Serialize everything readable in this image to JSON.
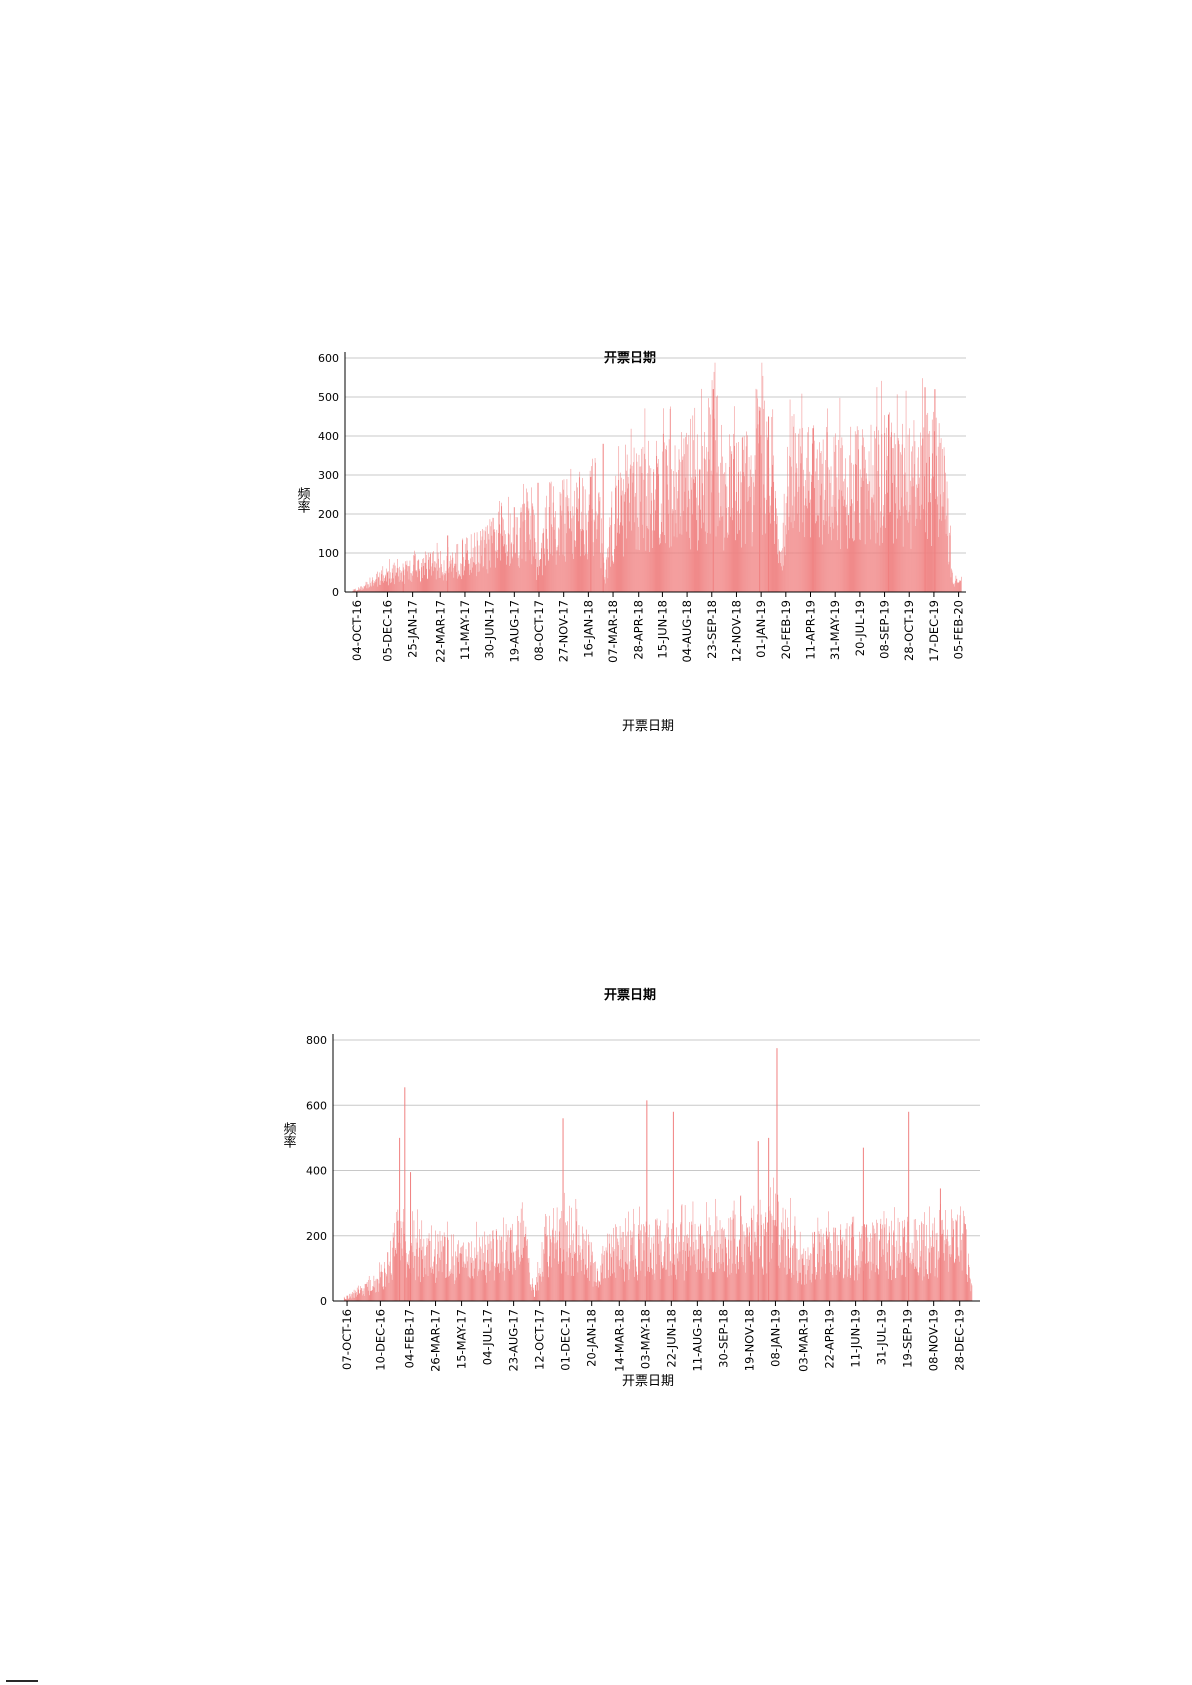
{
  "chart_data": [
    {
      "type": "bar",
      "title": "开票日期",
      "xlabel": "开票日期",
      "ylabel": "频率",
      "ylim": [
        0,
        600
      ],
      "yticks": [
        0,
        100,
        200,
        300,
        400,
        500,
        600
      ],
      "bar_color": "#f08080",
      "grid": true,
      "x_range": [
        "2016-09-10",
        "2020-02-20"
      ],
      "xticks": [
        "04-OCT-16",
        "05-DEC-16",
        "25-JAN-17",
        "22-MAR-17",
        "11-MAY-17",
        "30-JUN-17",
        "19-AUG-17",
        "08-OCT-17",
        "27-NOV-17",
        "16-JAN-18",
        "07-MAR-18",
        "28-APR-18",
        "15-JUN-18",
        "04-AUG-18",
        "23-SEP-18",
        "12-NOV-18",
        "01-JAN-19",
        "20-FEB-19",
        "11-APR-19",
        "31-MAY-19",
        "20-JUL-19",
        "08-SEP-19",
        "28-OCT-19",
        "17-DEC-19",
        "05-FEB-20"
      ],
      "x": [
        "2016-09-25",
        "2016-10-15",
        "2016-11-05",
        "2016-11-25",
        "2016-12-15",
        "2017-01-05",
        "2017-01-25",
        "2017-02-15",
        "2017-03-05",
        "2017-03-25",
        "2017-04-15",
        "2017-05-05",
        "2017-05-25",
        "2017-06-15",
        "2017-07-05",
        "2017-07-25",
        "2017-08-15",
        "2017-09-05",
        "2017-09-25",
        "2017-10-05",
        "2017-10-25",
        "2017-11-15",
        "2017-12-05",
        "2017-12-25",
        "2018-01-15",
        "2018-02-05",
        "2018-02-18",
        "2018-03-05",
        "2018-03-25",
        "2018-04-15",
        "2018-05-05",
        "2018-05-25",
        "2018-06-15",
        "2018-07-05",
        "2018-07-25",
        "2018-08-15",
        "2018-09-05",
        "2018-09-25",
        "2018-10-15",
        "2018-11-05",
        "2018-11-25",
        "2018-12-15",
        "2019-01-05",
        "2019-01-25",
        "2019-02-08",
        "2019-02-25",
        "2019-03-15",
        "2019-04-05",
        "2019-04-25",
        "2019-05-15",
        "2019-06-05",
        "2019-06-25",
        "2019-07-15",
        "2019-08-05",
        "2019-08-25",
        "2019-09-15",
        "2019-10-05",
        "2019-10-25",
        "2019-11-15",
        "2019-12-05",
        "2019-12-25",
        "2020-01-10",
        "2020-01-25",
        "2020-02-10"
      ],
      "values": [
        5,
        12,
        28,
        40,
        55,
        48,
        70,
        62,
        80,
        75,
        85,
        95,
        110,
        120,
        140,
        160,
        175,
        170,
        185,
        60,
        190,
        200,
        215,
        225,
        240,
        250,
        25,
        200,
        245,
        260,
        275,
        285,
        290,
        285,
        300,
        295,
        310,
        420,
        300,
        305,
        295,
        330,
        400,
        310,
        60,
        320,
        300,
        310,
        315,
        305,
        300,
        295,
        310,
        290,
        320,
        330,
        295,
        310,
        320,
        330,
        350,
        240,
        25,
        30
      ],
      "peaks": [
        {
          "x": "2017-01-05",
          "y": 55
        },
        {
          "x": "2017-04-05",
          "y": 145
        },
        {
          "x": "2017-10-05",
          "y": 280
        },
        {
          "x": "2018-01-20",
          "y": 295
        },
        {
          "x": "2018-02-14",
          "y": 380
        },
        {
          "x": "2018-09-25",
          "y": 520
        },
        {
          "x": "2018-12-28",
          "y": 465
        },
        {
          "x": "2019-01-15",
          "y": 450
        },
        {
          "x": "2019-04-15",
          "y": 420
        },
        {
          "x": "2019-09-15",
          "y": 455
        },
        {
          "x": "2019-11-28",
          "y": 525
        },
        {
          "x": "2019-12-18",
          "y": 520
        }
      ]
    },
    {
      "type": "bar",
      "title": "开票日期",
      "xlabel": "开票日期",
      "ylabel": "频率",
      "ylim": [
        0,
        800
      ],
      "yticks": [
        0,
        200,
        400,
        600,
        800
      ],
      "bar_color": "#f08080",
      "grid": true,
      "x_range": [
        "2016-09-10",
        "2020-02-05"
      ],
      "xticks": [
        "07-OCT-16",
        "10-DEC-16",
        "04-FEB-17",
        "26-MAR-17",
        "15-MAY-17",
        "04-JUL-17",
        "23-AUG-17",
        "12-OCT-17",
        "01-DEC-17",
        "20-JAN-18",
        "14-MAR-18",
        "03-MAY-18",
        "22-JUN-18",
        "11-AUG-18",
        "30-SEP-18",
        "19-NOV-18",
        "08-JAN-19",
        "03-MAR-19",
        "22-APR-19",
        "11-JUN-19",
        "31-JUL-19",
        "19-SEP-19",
        "08-NOV-19",
        "28-DEC-19"
      ],
      "x": [
        "2016-10-01",
        "2016-10-20",
        "2016-11-10",
        "2016-12-01",
        "2016-12-20",
        "2017-01-10",
        "2017-01-25",
        "2017-02-15",
        "2017-03-10",
        "2017-04-01",
        "2017-04-25",
        "2017-05-15",
        "2017-06-05",
        "2017-06-25",
        "2017-07-15",
        "2017-08-05",
        "2017-08-25",
        "2017-09-15",
        "2017-10-01",
        "2017-10-20",
        "2017-11-10",
        "2017-12-01",
        "2017-12-20",
        "2018-01-10",
        "2018-02-01",
        "2018-02-15",
        "2018-03-05",
        "2018-03-25",
        "2018-04-15",
        "2018-05-05",
        "2018-05-25",
        "2018-06-15",
        "2018-07-05",
        "2018-07-25",
        "2018-08-15",
        "2018-09-05",
        "2018-09-25",
        "2018-10-15",
        "2018-11-05",
        "2018-11-25",
        "2018-12-15",
        "2019-01-05",
        "2019-01-25",
        "2019-02-15",
        "2019-03-05",
        "2019-03-25",
        "2019-04-15",
        "2019-05-05",
        "2019-05-25",
        "2019-06-15",
        "2019-07-05",
        "2019-07-25",
        "2019-08-15",
        "2019-09-05",
        "2019-09-25",
        "2019-10-15",
        "2019-11-05",
        "2019-11-25",
        "2019-12-15",
        "2020-01-05",
        "2020-01-20"
      ],
      "values": [
        10,
        25,
        40,
        60,
        90,
        220,
        160,
        170,
        150,
        160,
        150,
        140,
        150,
        155,
        160,
        170,
        175,
        180,
        20,
        190,
        200,
        210,
        215,
        190,
        60,
        150,
        160,
        170,
        175,
        180,
        185,
        180,
        175,
        180,
        185,
        190,
        195,
        200,
        190,
        210,
        230,
        240,
        220,
        160,
        110,
        160,
        170,
        165,
        175,
        170,
        180,
        185,
        180,
        185,
        190,
        175,
        180,
        190,
        185,
        200,
        40
      ],
      "peaks": [
        {
          "x": "2017-01-15",
          "y": 500
        },
        {
          "x": "2017-01-25",
          "y": 655
        },
        {
          "x": "2017-02-05",
          "y": 395
        },
        {
          "x": "2017-11-25",
          "y": 560
        },
        {
          "x": "2018-05-05",
          "y": 615
        },
        {
          "x": "2018-06-25",
          "y": 580
        },
        {
          "x": "2018-12-05",
          "y": 490
        },
        {
          "x": "2018-12-25",
          "y": 500
        },
        {
          "x": "2019-01-10",
          "y": 775
        },
        {
          "x": "2019-06-25",
          "y": 470
        },
        {
          "x": "2019-09-20",
          "y": 580
        },
        {
          "x": "2019-11-20",
          "y": 345
        }
      ]
    }
  ]
}
